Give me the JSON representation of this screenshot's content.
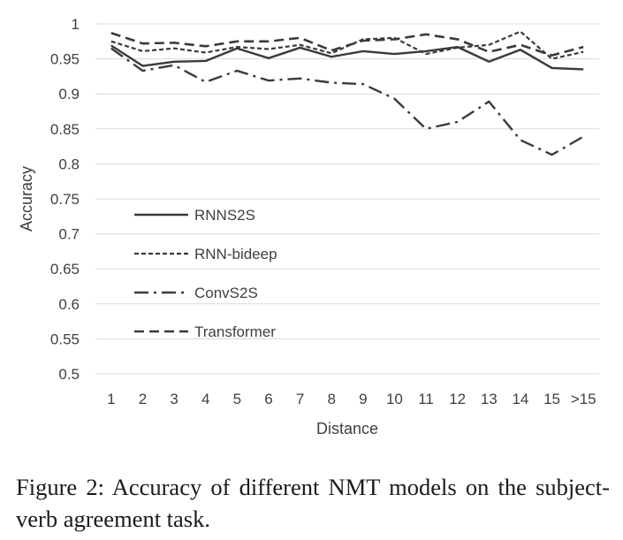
{
  "chart_data": {
    "type": "line",
    "xlabel": "Distance",
    "ylabel": "Accuracy",
    "categories": [
      "1",
      "2",
      "3",
      "4",
      "5",
      "6",
      "7",
      "8",
      "9",
      "10",
      "11",
      "12",
      "13",
      "14",
      "15",
      ">15"
    ],
    "ylim": [
      0.5,
      1
    ],
    "yticks": [
      "0.5",
      "0.55",
      "0.6",
      "0.65",
      "0.7",
      "0.75",
      "0.8",
      "0.85",
      "0.9",
      "0.95",
      "1"
    ],
    "grid": true,
    "legend_position": "left-middle",
    "series": [
      {
        "name": "RNNS2S",
        "style": "solid",
        "values": [
          0.969,
          0.94,
          0.946,
          0.947,
          0.965,
          0.951,
          0.966,
          0.953,
          0.961,
          0.957,
          0.961,
          0.967,
          0.946,
          0.963,
          0.937,
          0.935
        ]
      },
      {
        "name": "RNN-bideep",
        "style": "dotted",
        "values": [
          0.975,
          0.961,
          0.965,
          0.959,
          0.967,
          0.964,
          0.97,
          0.958,
          0.978,
          0.98,
          0.957,
          0.966,
          0.97,
          0.989,
          0.95,
          0.96
        ]
      },
      {
        "name": "ConvS2S",
        "style": "dash-dot",
        "values": [
          0.965,
          0.933,
          0.941,
          0.917,
          0.933,
          0.919,
          0.922,
          0.916,
          0.914,
          0.893,
          0.85,
          0.86,
          0.889,
          0.834,
          0.813,
          0.839
        ]
      },
      {
        "name": "Transformer",
        "style": "dashed",
        "values": [
          0.987,
          0.972,
          0.973,
          0.968,
          0.975,
          0.975,
          0.98,
          0.962,
          0.976,
          0.978,
          0.985,
          0.978,
          0.96,
          0.97,
          0.955,
          0.967
        ]
      }
    ]
  },
  "caption": "Figure 2: Accuracy of different NMT models on the subject-verb agreement task.",
  "colors": {
    "line": "#3a3a3a",
    "grid": "#d9d9d9",
    "text": "#404040"
  }
}
